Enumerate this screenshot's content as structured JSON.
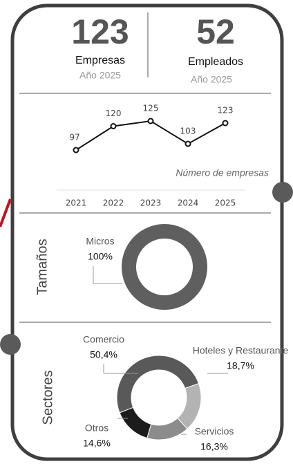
{
  "kpis": [
    {
      "value": "123",
      "label": "Empresas",
      "period": "Año 2025"
    },
    {
      "value": "52",
      "label": "Empleados",
      "period": "Año 2025"
    }
  ],
  "chart_data": [
    {
      "type": "line",
      "categories": [
        "2021",
        "2022",
        "2023",
        "2024",
        "2025"
      ],
      "values": [
        97,
        120,
        125,
        103,
        123
      ],
      "annotation": "Número de empresas",
      "color": "#111111"
    },
    {
      "type": "donut",
      "title": "Tamaños",
      "categories": [
        "Micros"
      ],
      "values": [
        100
      ],
      "value_labels": [
        "100%"
      ],
      "colors": [
        "#5f5f5f"
      ]
    },
    {
      "type": "donut",
      "title": "Sectores",
      "categories": [
        "Comercio",
        "Hoteles y Restaurante",
        "Servicios",
        "Otros"
      ],
      "values": [
        50.4,
        18.7,
        16.3,
        14.6
      ],
      "value_labels": [
        "50,4%",
        "18,7%",
        "16,3%",
        "14,6%"
      ],
      "colors": [
        "#595959",
        "#b3b3b3",
        "#8c8c8c",
        "#1c1c1c"
      ]
    }
  ]
}
